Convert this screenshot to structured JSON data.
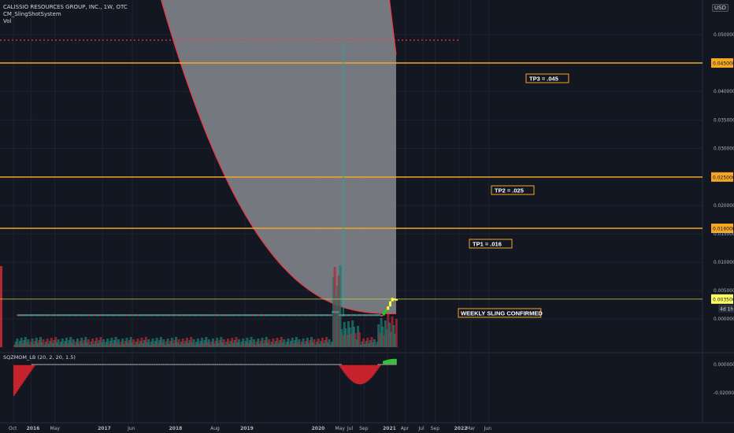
{
  "header": {
    "symbol": "CALISSIO RESOURCES GROUP, INC., 1W, OTC",
    "indicator_1": "CM_SlingShotSystem",
    "indicator_2": "Vol",
    "currency": "USD"
  },
  "colors": {
    "background": "#131722",
    "grid": "#1f2330",
    "orange": "#f5a623",
    "red": "#f23645",
    "teal": "#26a69a",
    "lime": "#00e600",
    "yellow": "#ffff33",
    "cloud": "#8c8e94"
  },
  "chart_data": [
    {
      "type": "line",
      "title": "CALISSIO RESOURCES GROUP, INC., 1W, OTC",
      "y_axis": {
        "ticks": [
          0.05,
          0.04,
          0.035,
          0.03,
          0.02,
          0.015,
          0.01,
          0.005,
          0.0
        ],
        "tick_labels": [
          "0.050000",
          "0.040000",
          "0.035000",
          "0.030000",
          "0.020000",
          "0.015000",
          "0.010000",
          "0.005000",
          "0.000000"
        ],
        "corner_label": "0."
      },
      "x_axis": {
        "ticks": [
          {
            "label": "Oct",
            "t": 2015.75
          },
          {
            "label": "2016",
            "t": 2016.0
          },
          {
            "label": "May",
            "t": 2016.33
          },
          {
            "label": "2017",
            "t": 2017.0
          },
          {
            "label": "Jun",
            "t": 2017.42
          },
          {
            "label": "2018",
            "t": 2018.0
          },
          {
            "label": "Aug",
            "t": 2018.58
          },
          {
            "label": "2019",
            "t": 2019.0
          },
          {
            "label": "2020",
            "t": 2020.0
          },
          {
            "label": "May",
            "t": 2020.33
          },
          {
            "label": "Jul",
            "t": 2020.5
          },
          {
            "label": "Sep",
            "t": 2020.67
          },
          {
            "label": "2021",
            "t": 2021.0
          },
          {
            "label": "Apr",
            "t": 2021.25
          },
          {
            "label": "Jul",
            "t": 2021.5
          },
          {
            "label": "Sep",
            "t": 2021.67
          },
          {
            "label": "2022",
            "t": 2022.0
          },
          {
            "label": "Mar",
            "t": 2022.17
          },
          {
            "label": "Jun",
            "t": 2022.42
          }
        ]
      },
      "horizontal_levels": [
        {
          "label": "TP3 = .045",
          "value": 0.045,
          "price_tag": "0.045000"
        },
        {
          "label": "TP2 = .025",
          "value": 0.025,
          "price_tag": "0.025000"
        },
        {
          "label": "TP1 = .016",
          "value": 0.016,
          "price_tag": "0.016000"
        }
      ],
      "current_price": {
        "value": 0.0035,
        "price_tag": "0.003500",
        "countdown": "4d 1h"
      },
      "dotted_level": 0.049,
      "annotation": "WEEKLY SLING CONFIRMED",
      "recent_candles": [
        {
          "t": 2020.87,
          "open": 0.0006,
          "close": 0.0008,
          "color": "teal"
        },
        {
          "t": 2020.9,
          "open": 0.0007,
          "close": 0.0006,
          "color": "red"
        },
        {
          "t": 2020.93,
          "open": 0.0006,
          "close": 0.0012,
          "color": "lime"
        },
        {
          "t": 2020.96,
          "open": 0.0012,
          "close": 0.0016,
          "color": "lime"
        },
        {
          "t": 2020.99,
          "open": 0.0016,
          "close": 0.0022,
          "color": "yellow"
        },
        {
          "t": 2021.02,
          "open": 0.0022,
          "close": 0.0031,
          "color": "yellow"
        },
        {
          "t": 2021.05,
          "open": 0.0031,
          "close": 0.0037,
          "color": "yellow"
        },
        {
          "t": 2021.08,
          "open": 0.0036,
          "close": 0.0033,
          "color": "yellow"
        },
        {
          "t": 2021.11,
          "open": 0.0033,
          "close": 0.0035,
          "color": "yellow"
        }
      ]
    },
    {
      "type": "bar",
      "title": "SQZMOM_LB (20, 2, 20, 1.5)",
      "y_axis": {
        "ticks": [
          0.0,
          -0.02
        ],
        "tick_labels": [
          "0.000000",
          "-0.020000"
        ]
      }
    }
  ]
}
